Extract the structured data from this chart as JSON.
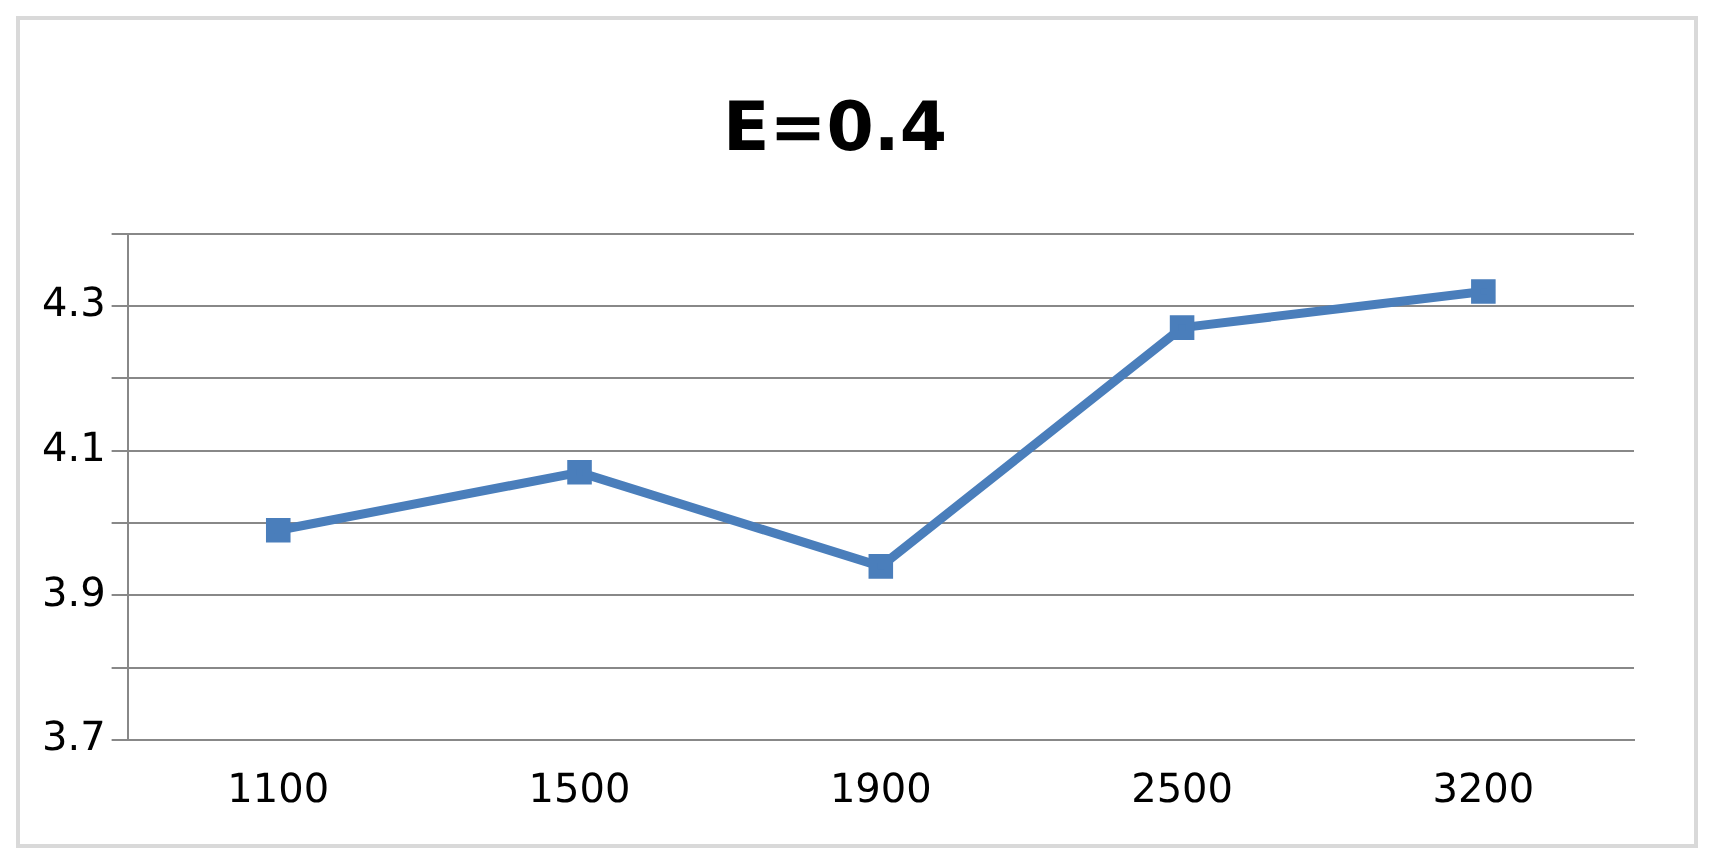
{
  "chart_data": {
    "type": "line",
    "title": "E=0.4",
    "categories": [
      "1100",
      "1500",
      "1900",
      "2500",
      "3200"
    ],
    "series": [
      {
        "color": "#4a7ebb",
        "values": [
          3.99,
          4.07,
          3.94,
          4.27,
          4.32
        ]
      }
    ],
    "ylim": [
      3.7,
      4.4
    ],
    "yticks": [
      3.7,
      {
        "value": 3.8,
        "label": null
      },
      3.9,
      {
        "value": 4.0,
        "label": null
      },
      4.1,
      {
        "value": 4.2,
        "label": null
      },
      4.3,
      {
        "value": 4.4,
        "label": null
      }
    ],
    "grid": "y",
    "legend": false,
    "marker": "square",
    "line_style": "solid"
  }
}
